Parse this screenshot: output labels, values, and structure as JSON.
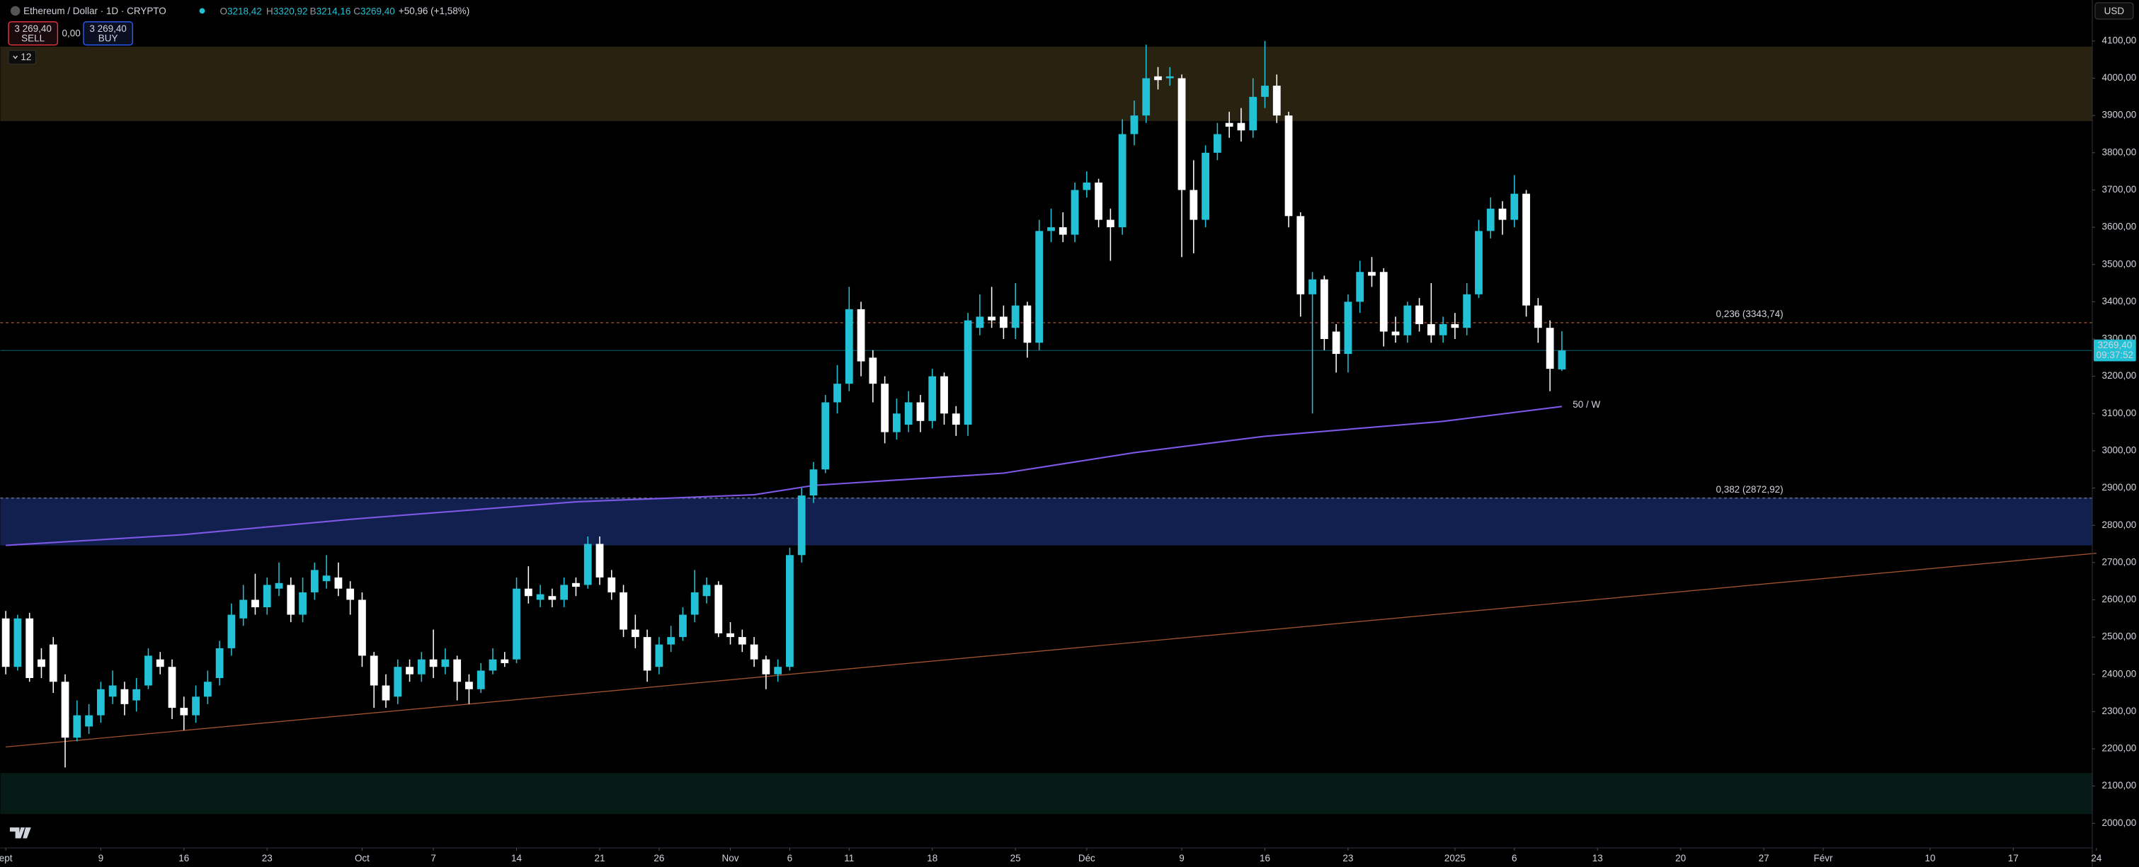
{
  "header": {
    "symbol": "Ethereum / Dollar · 1D · CRYPTO",
    "ohlc": [
      {
        "label": "O",
        "value": "3218,42"
      },
      {
        "label": "H",
        "value": "3320,92"
      },
      {
        "label": "B",
        "value": "3214,16"
      },
      {
        "label": "C",
        "value": "3269,40"
      }
    ],
    "change": "+50,96 (+1,58%)",
    "sell": {
      "price": "3 269,40",
      "label": "SELL"
    },
    "spread": "0,00",
    "buy": {
      "price": "3 269,40",
      "label": "BUY"
    },
    "indicator_count": "12",
    "currency": "USD"
  },
  "chart_data": {
    "type": "candlestick",
    "up_color": "#22c1d6",
    "down_color": "#ffffff",
    "xlim": [
      0,
      176
    ],
    "xticks": [
      {
        "value": 0,
        "label": "ept"
      },
      {
        "value": 8,
        "label": "9"
      },
      {
        "value": 15,
        "label": "16"
      },
      {
        "value": 22,
        "label": "23"
      },
      {
        "value": 30,
        "label": "Oct"
      },
      {
        "value": 36,
        "label": "7"
      },
      {
        "value": 43,
        "label": "14"
      },
      {
        "value": 50,
        "label": "21"
      },
      {
        "value": 55,
        "label": "26"
      },
      {
        "value": 61,
        "label": "Nov"
      },
      {
        "value": 66,
        "label": "6"
      },
      {
        "value": 71,
        "label": "11"
      },
      {
        "value": 78,
        "label": "18"
      },
      {
        "value": 85,
        "label": "25"
      },
      {
        "value": 91,
        "label": "Déc"
      },
      {
        "value": 99,
        "label": "9"
      },
      {
        "value": 106,
        "label": "16"
      },
      {
        "value": 113,
        "label": "23"
      },
      {
        "value": 122,
        "label": "2025"
      },
      {
        "value": 127,
        "label": "6"
      },
      {
        "value": 134,
        "label": "13"
      },
      {
        "value": 141,
        "label": "20"
      },
      {
        "value": 148,
        "label": "27"
      },
      {
        "value": 153,
        "label": "Févr"
      },
      {
        "value": 162,
        "label": "10"
      },
      {
        "value": 169,
        "label": "17"
      },
      {
        "value": 176,
        "label": "24"
      }
    ],
    "ylim": [
      1934,
      4210
    ],
    "yticks": [
      {
        "value": 4100,
        "label": "4100,00"
      },
      {
        "value": 4000,
        "label": "4000,00"
      },
      {
        "value": 3900,
        "label": "3900,00"
      },
      {
        "value": 3800,
        "label": "3800,00"
      },
      {
        "value": 3700,
        "label": "3700,00"
      },
      {
        "value": 3600,
        "label": "3600,00"
      },
      {
        "value": 3500,
        "label": "3500,00"
      },
      {
        "value": 3400,
        "label": "3400,00"
      },
      {
        "value": 3300,
        "label": "3300,00"
      },
      {
        "value": 3200,
        "label": "3200,00"
      },
      {
        "value": 3100,
        "label": "3100,00"
      },
      {
        "value": 3000,
        "label": "3000,00"
      },
      {
        "value": 2900,
        "label": "2900,00"
      },
      {
        "value": 2800,
        "label": "2800,00"
      },
      {
        "value": 2700,
        "label": "2700,00"
      },
      {
        "value": 2600,
        "label": "2600,00"
      },
      {
        "value": 2500,
        "label": "2500,00"
      },
      {
        "value": 2400,
        "label": "2400,00"
      },
      {
        "value": 2300,
        "label": "2300,00"
      },
      {
        "value": 2200,
        "label": "2200,00"
      },
      {
        "value": 2100,
        "label": "2100,00"
      },
      {
        "value": 2000,
        "label": "2000,00"
      }
    ],
    "open": [
      2550,
      2420,
      2550,
      2440,
      2480,
      2380,
      2230,
      2260,
      2290,
      2340,
      2360,
      2330,
      2370,
      2440,
      2420,
      2310,
      2290,
      2340,
      2390,
      2470,
      2550,
      2600,
      2580,
      2630,
      2640,
      2560,
      2620,
      2650,
      2660,
      2630,
      2600,
      2450,
      2370,
      2340,
      2420,
      2400,
      2440,
      2420,
      2440,
      2380,
      2360,
      2410,
      2440,
      2440,
      2630,
      2600,
      2610,
      2600,
      2645,
      2640,
      2750,
      2660,
      2620,
      2520,
      2500,
      2420,
      2480,
      2500,
      2560,
      2610,
      2640,
      2510,
      2500,
      2480,
      2440,
      2400,
      2420,
      2720,
      2880,
      2950,
      3130,
      3180,
      3380,
      3250,
      3180,
      3050,
      3070,
      3130,
      3080,
      3200,
      3100,
      3070,
      3330,
      3360,
      3360,
      3330,
      3390,
      3290,
      3590,
      3600,
      3580,
      3700,
      3720,
      3620,
      3600,
      3850,
      3900,
      4005,
      4000,
      4000,
      3700,
      3620,
      3800,
      3880,
      3880,
      3860,
      3950,
      3980,
      3900,
      3630,
      3420,
      3460,
      3320,
      3260,
      3400,
      3480,
      3480,
      3320,
      3310,
      3390,
      3340,
      3310,
      3340,
      3330,
      3420,
      3590,
      3650,
      3620,
      3690,
      3390,
      3330,
      3218.42
    ],
    "high": [
      2570,
      2560,
      2565,
      2470,
      2500,
      2400,
      2330,
      2320,
      2380,
      2410,
      2380,
      2390,
      2470,
      2460,
      2440,
      2340,
      2370,
      2410,
      2490,
      2590,
      2640,
      2670,
      2660,
      2700,
      2660,
      2660,
      2700,
      2720,
      2700,
      2650,
      2620,
      2460,
      2400,
      2440,
      2440,
      2460,
      2520,
      2470,
      2450,
      2400,
      2430,
      2470,
      2460,
      2660,
      2690,
      2640,
      2630,
      2660,
      2660,
      2770,
      2770,
      2680,
      2640,
      2560,
      2520,
      2500,
      2530,
      2580,
      2680,
      2660,
      2650,
      2540,
      2520,
      2500,
      2450,
      2440,
      2740,
      2900,
      2970,
      3150,
      3230,
      3440,
      3400,
      3270,
      3200,
      3140,
      3160,
      3150,
      3220,
      3210,
      3120,
      3370,
      3420,
      3440,
      3390,
      3450,
      3400,
      3620,
      3650,
      3640,
      3720,
      3750,
      3730,
      3650,
      3890,
      3940,
      4090,
      4030,
      4030,
      4010,
      3780,
      3820,
      3880,
      3910,
      3920,
      4000,
      4100,
      4010,
      3910,
      3640,
      3480,
      3470,
      3340,
      3420,
      3510,
      3520,
      3490,
      3360,
      3400,
      3410,
      3450,
      3360,
      3370,
      3450,
      3620,
      3680,
      3670,
      3740,
      3700,
      3410,
      3350,
      3320.92
    ],
    "low": [
      2400,
      2410,
      2380,
      2390,
      2350,
      2150,
      2220,
      2240,
      2270,
      2320,
      2290,
      2300,
      2360,
      2400,
      2280,
      2250,
      2270,
      2320,
      2370,
      2450,
      2530,
      2560,
      2560,
      2610,
      2540,
      2540,
      2600,
      2630,
      2610,
      2560,
      2420,
      2310,
      2310,
      2320,
      2380,
      2380,
      2390,
      2400,
      2330,
      2320,
      2350,
      2400,
      2420,
      2430,
      2590,
      2580,
      2580,
      2580,
      2610,
      2630,
      2640,
      2600,
      2500,
      2470,
      2380,
      2400,
      2460,
      2490,
      2540,
      2590,
      2500,
      2480,
      2460,
      2420,
      2360,
      2380,
      2410,
      2700,
      2860,
      2940,
      3100,
      3160,
      3200,
      3130,
      3020,
      3030,
      3050,
      3050,
      3060,
      3070,
      3040,
      3040,
      3310,
      3330,
      3300,
      3300,
      3250,
      3270,
      3560,
      3560,
      3560,
      3680,
      3600,
      3510,
      3580,
      3820,
      3880,
      3970,
      3980,
      3520,
      3530,
      3600,
      3780,
      3840,
      3830,
      3840,
      3920,
      3880,
      3600,
      3360,
      3100,
      3270,
      3210,
      3210,
      3370,
      3440,
      3280,
      3290,
      3290,
      3320,
      3290,
      3290,
      3300,
      3310,
      3410,
      3570,
      3580,
      3600,
      3360,
      3290,
      3160,
      3214.16
    ],
    "close": [
      2420,
      2550,
      2390,
      2420,
      2380,
      2230,
      2290,
      2290,
      2360,
      2370,
      2320,
      2360,
      2450,
      2420,
      2310,
      2290,
      2340,
      2380,
      2470,
      2560,
      2600,
      2580,
      2640,
      2645,
      2560,
      2620,
      2680,
      2665,
      2630,
      2600,
      2450,
      2370,
      2330,
      2420,
      2400,
      2440,
      2420,
      2440,
      2380,
      2360,
      2410,
      2440,
      2430,
      2630,
      2610,
      2615,
      2600,
      2640,
      2635,
      2750,
      2660,
      2620,
      2520,
      2500,
      2410,
      2480,
      2500,
      2560,
      2620,
      2640,
      2510,
      2500,
      2480,
      2440,
      2400,
      2420,
      2720,
      2880,
      2950,
      3130,
      3180,
      3380,
      3240,
      3180,
      3050,
      3100,
      3130,
      3080,
      3200,
      3100,
      3070,
      3350,
      3360,
      3350,
      3330,
      3390,
      3290,
      3590,
      3600,
      3580,
      3700,
      3720,
      3620,
      3600,
      3850,
      3900,
      4000,
      3995,
      4005,
      3700,
      3620,
      3800,
      3850,
      3870,
      3860,
      3950,
      3980,
      3900,
      3630,
      3420,
      3460,
      3300,
      3260,
      3400,
      3480,
      3470,
      3320,
      3310,
      3390,
      3340,
      3310,
      3340,
      3330,
      3420,
      3590,
      3650,
      3620,
      3690,
      3390,
      3330,
      3220,
      3269.4
    ],
    "zones": [
      {
        "from": 3885,
        "to": 4085,
        "color": "#2a2210"
      },
      {
        "from": 2746,
        "to": 2874,
        "color": "#12204f"
      },
      {
        "from": 2025,
        "to": 2135,
        "color": "#061a16"
      }
    ],
    "levels": [
      {
        "value": 3343.74,
        "label": "0,236 (3343,74)",
        "color": "#c8603a"
      },
      {
        "value": 2872.92,
        "label": "0,382 (2872,92)",
        "color": "#8a8f98"
      }
    ],
    "moving_average": {
      "name": "50 / W",
      "color": "#7e57e6",
      "x": [
        0,
        15,
        29,
        48,
        63,
        68,
        84,
        95,
        106,
        121,
        131
      ],
      "values": [
        2746,
        2775,
        2816,
        2863,
        2882,
        2907,
        2940,
        2995,
        3039,
        3079,
        3119
      ]
    },
    "trendline": {
      "color": "#a0522d",
      "x": [
        0,
        176
      ],
      "values": [
        2205,
        2725
      ]
    },
    "last_price_label": "3269,40",
    "countdown": "09:37:52"
  }
}
